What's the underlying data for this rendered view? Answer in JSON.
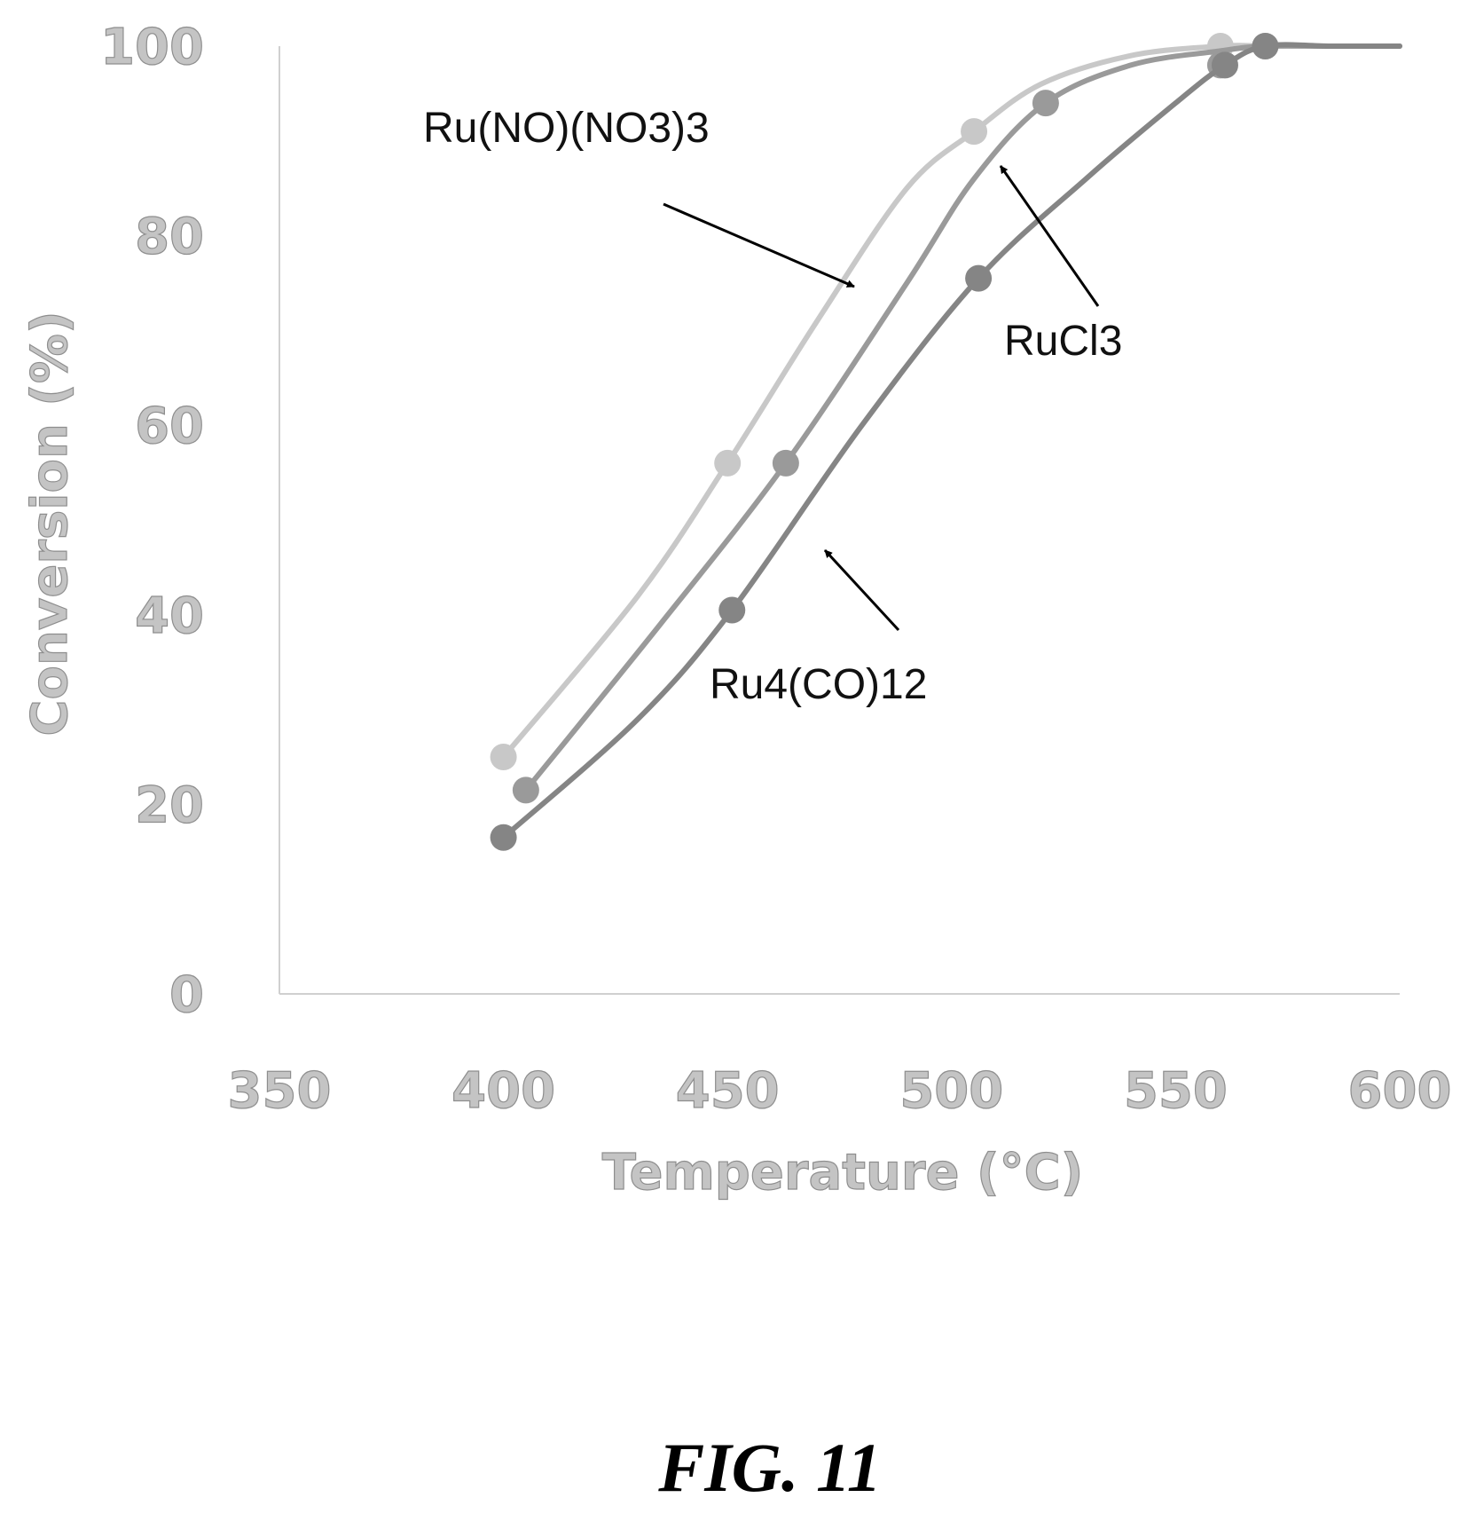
{
  "chart_data": {
    "type": "line",
    "title": "",
    "xlabel": "Temperature (°C)",
    "ylabel": "Conversion (%)",
    "xlim": [
      350,
      600
    ],
    "ylim": [
      0,
      100
    ],
    "x_ticks": [
      350,
      400,
      450,
      500,
      550,
      600
    ],
    "y_ticks": [
      0,
      20,
      40,
      60,
      80,
      100
    ],
    "grid": false,
    "series": [
      {
        "name": "Ru(NO)(NO3)3",
        "color": "#c8c8c8",
        "marker_x": [
          400,
          450,
          505,
          560,
          570
        ],
        "marker_y": [
          25,
          56,
          91,
          100,
          100
        ],
        "curve_x": [
          400,
          430,
          450,
          470,
          490,
          505,
          520,
          540,
          560,
          570,
          585,
          600
        ],
        "curve_y": [
          25,
          42,
          56,
          71,
          85,
          91,
          96,
          99,
          100,
          100,
          100,
          100
        ]
      },
      {
        "name": "RuCl3",
        "color": "#9a9a9a",
        "marker_x": [
          405,
          463,
          521,
          560
        ],
        "marker_y": [
          21.5,
          56,
          94,
          98
        ],
        "curve_x": [
          405,
          435,
          463,
          490,
          505,
          521,
          540,
          560,
          570,
          585,
          600
        ],
        "curve_y": [
          21.5,
          39,
          56,
          75,
          86,
          94,
          98,
          99.5,
          100,
          100,
          100
        ]
      },
      {
        "name": "Ru4(CO)12",
        "color": "#858585",
        "marker_x": [
          400,
          451,
          506,
          561,
          570
        ],
        "marker_y": [
          16.5,
          40.5,
          75.5,
          98,
          100
        ],
        "curve_x": [
          400,
          430,
          451,
          480,
          506,
          530,
          550,
          561,
          570,
          585,
          600
        ],
        "curve_y": [
          16.5,
          29,
          40.5,
          60,
          75.5,
          86,
          94,
          98,
          100,
          100,
          100
        ]
      }
    ],
    "annotations": [
      {
        "text": "Ru(NO)(NO3)3",
        "series": "Ru(NO)(NO3)3"
      },
      {
        "text": "RuCl3",
        "series": "RuCl3"
      },
      {
        "text": "Ru4(CO)12",
        "series": "Ru4(CO)12"
      }
    ]
  },
  "caption": "FIG. 11"
}
